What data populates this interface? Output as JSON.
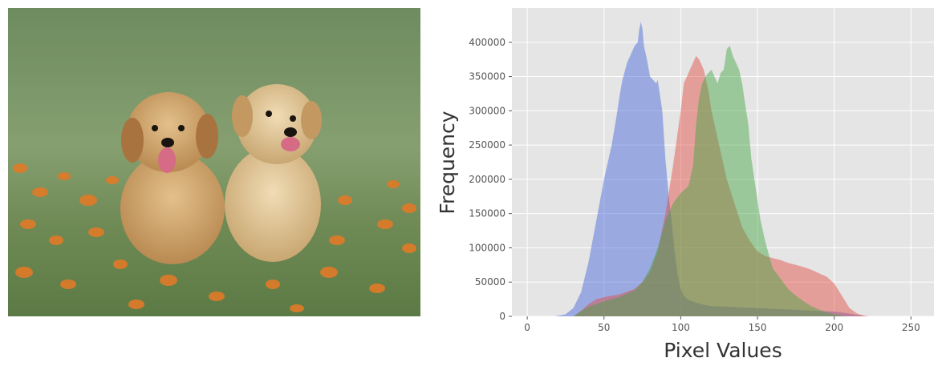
{
  "photo": {
    "alt": "two golden retriever puppies sitting in grass with orange flowers"
  },
  "chart_data": {
    "type": "area",
    "style": "ggplot histogram",
    "xlabel": "Pixel Values",
    "ylabel": "Frequency",
    "xlim": [
      -10,
      265
    ],
    "ylim": [
      0,
      450000
    ],
    "x_ticks": [
      0,
      50,
      100,
      150,
      200,
      250
    ],
    "y_ticks": [
      0,
      50000,
      100000,
      150000,
      200000,
      250000,
      300000,
      350000,
      400000
    ],
    "grid": true,
    "legend": "none",
    "series": [
      {
        "color": "#4f6fdd",
        "opacity": 0.5,
        "x": [
          18,
          25,
          30,
          35,
          40,
          45,
          50,
          55,
          58,
          60,
          62,
          65,
          68,
          70,
          72,
          73,
          74,
          75,
          76,
          78,
          80,
          82,
          84,
          85,
          86,
          88,
          90,
          92,
          94,
          96,
          98,
          100,
          102,
          105,
          110,
          115,
          120,
          130,
          140,
          150,
          160,
          170,
          180,
          190,
          200,
          210,
          215,
          220
        ],
        "y": [
          0,
          3000,
          12000,
          35000,
          80000,
          140000,
          200000,
          250000,
          290000,
          320000,
          345000,
          370000,
          385000,
          395000,
          400000,
          420000,
          430000,
          420000,
          395000,
          375000,
          350000,
          345000,
          340000,
          345000,
          330000,
          300000,
          230000,
          180000,
          140000,
          95000,
          60000,
          40000,
          30000,
          24000,
          20000,
          17000,
          15000,
          14000,
          13000,
          12000,
          11000,
          10000,
          9000,
          8000,
          7000,
          4000,
          2000,
          0
        ]
      },
      {
        "color": "#e2473f",
        "opacity": 0.45,
        "x": [
          30,
          35,
          40,
          45,
          50,
          60,
          70,
          75,
          80,
          85,
          90,
          95,
          100,
          102,
          105,
          108,
          110,
          112,
          115,
          118,
          120,
          122,
          125,
          128,
          130,
          135,
          140,
          145,
          150,
          155,
          160,
          165,
          170,
          175,
          180,
          185,
          190,
          195,
          200,
          205,
          210,
          215,
          220,
          223
        ],
        "y": [
          0,
          8000,
          18000,
          25000,
          28000,
          32000,
          40000,
          50000,
          65000,
          95000,
          150000,
          220000,
          300000,
          340000,
          355000,
          370000,
          380000,
          375000,
          360000,
          330000,
          300000,
          280000,
          250000,
          220000,
          200000,
          165000,
          130000,
          110000,
          95000,
          88000,
          85000,
          82000,
          78000,
          75000,
          72000,
          68000,
          63000,
          58000,
          48000,
          30000,
          12000,
          4000,
          1000,
          0
        ]
      },
      {
        "color": "#3fa43f",
        "opacity": 0.45,
        "x": [
          30,
          35,
          40,
          50,
          60,
          70,
          75,
          80,
          85,
          90,
          95,
          100,
          105,
          108,
          110,
          112,
          114,
          116,
          118,
          120,
          122,
          124,
          126,
          128,
          130,
          132,
          134,
          136,
          138,
          140,
          142,
          144,
          146,
          148,
          150,
          152,
          155,
          158,
          160,
          165,
          170,
          175,
          180,
          185,
          190,
          195,
          200,
          205,
          210
        ],
        "y": [
          0,
          8000,
          14000,
          22000,
          28000,
          38000,
          50000,
          70000,
          100000,
          140000,
          165000,
          180000,
          190000,
          220000,
          280000,
          320000,
          340000,
          350000,
          355000,
          360000,
          350000,
          340000,
          355000,
          360000,
          390000,
          395000,
          380000,
          370000,
          360000,
          340000,
          310000,
          280000,
          230000,
          200000,
          170000,
          140000,
          110000,
          85000,
          70000,
          55000,
          40000,
          30000,
          22000,
          15000,
          10000,
          6000,
          3000,
          1000,
          0
        ]
      }
    ]
  }
}
